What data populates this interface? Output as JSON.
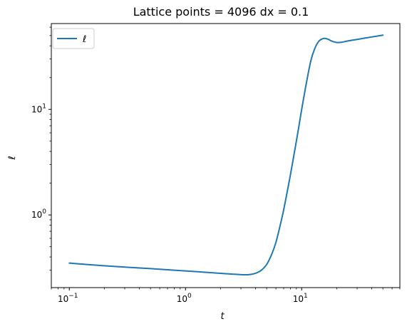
{
  "chart_data": {
    "type": "line",
    "title": "Lattice points = 4096 dx = 0.1",
    "xlabel": "t",
    "ylabel": "ℓ",
    "xscale": "log",
    "yscale": "log",
    "xlim": [
      0.07,
      70
    ],
    "ylim": [
      0.205,
      65
    ],
    "grid": false,
    "legend": "top-left",
    "x_ticks": [
      {
        "value": 0.1,
        "base": "10",
        "exp": "−1"
      },
      {
        "value": 1,
        "base": "10",
        "exp": "0"
      },
      {
        "value": 10,
        "base": "10",
        "exp": "1"
      }
    ],
    "y_ticks": [
      {
        "value": 1,
        "base": "10",
        "exp": "0"
      },
      {
        "value": 10,
        "base": "10",
        "exp": "1"
      }
    ],
    "series": [
      {
        "name": "ℓ",
        "color": "#1f77b4",
        "x": [
          0.1,
          0.2,
          0.5,
          1,
          2,
          3,
          3.5,
          4,
          4.5,
          5,
          5.5,
          6,
          6.5,
          7,
          7.5,
          8,
          8.5,
          9,
          9.5,
          10,
          11,
          12,
          13,
          14,
          15,
          16,
          17,
          18,
          20,
          22,
          25,
          30,
          40,
          50
        ],
        "y": [
          0.35,
          0.33,
          0.31,
          0.295,
          0.28,
          0.272,
          0.272,
          0.28,
          0.3,
          0.34,
          0.42,
          0.55,
          0.78,
          1.12,
          1.65,
          2.4,
          3.5,
          5.0,
          7.1,
          10.0,
          18.0,
          29.0,
          38.0,
          44.0,
          46.5,
          47.0,
          46.0,
          44.5,
          43.0,
          43.2,
          44.5,
          46.0,
          48.5,
          50.5
        ]
      }
    ]
  }
}
